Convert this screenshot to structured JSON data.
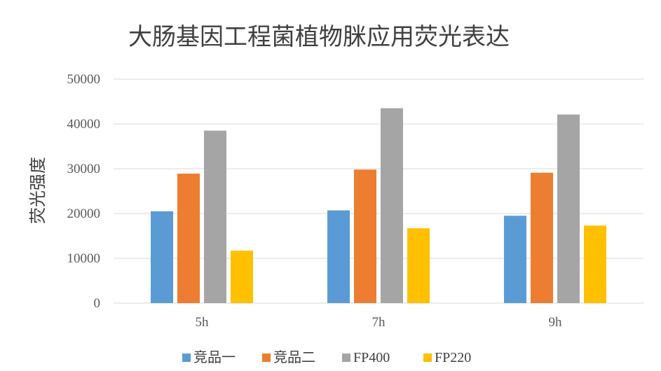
{
  "chart_data": {
    "type": "bar",
    "title": "大肠基因工程菌植物脒应用荧光表达",
    "xlabel": "",
    "ylabel": "荧光强度",
    "categories": [
      "5h",
      "7h",
      "9h"
    ],
    "ylim": [
      0,
      50000
    ],
    "yticks": [
      "0",
      "10000",
      "20000",
      "30000",
      "40000",
      "50000"
    ],
    "grid": true,
    "legend_position": "bottom",
    "series": [
      {
        "name": "竞品一",
        "color": "#5B9BD5",
        "values": [
          20500,
          20700,
          19500
        ]
      },
      {
        "name": "竞品二",
        "color": "#ED7D31",
        "values": [
          28900,
          29800,
          29100
        ]
      },
      {
        "name": "FP400",
        "color": "#A5A5A5",
        "values": [
          38500,
          43500,
          42100
        ]
      },
      {
        "name": "FP220",
        "color": "#FFC000",
        "values": [
          11700,
          16700,
          17300
        ]
      }
    ]
  }
}
